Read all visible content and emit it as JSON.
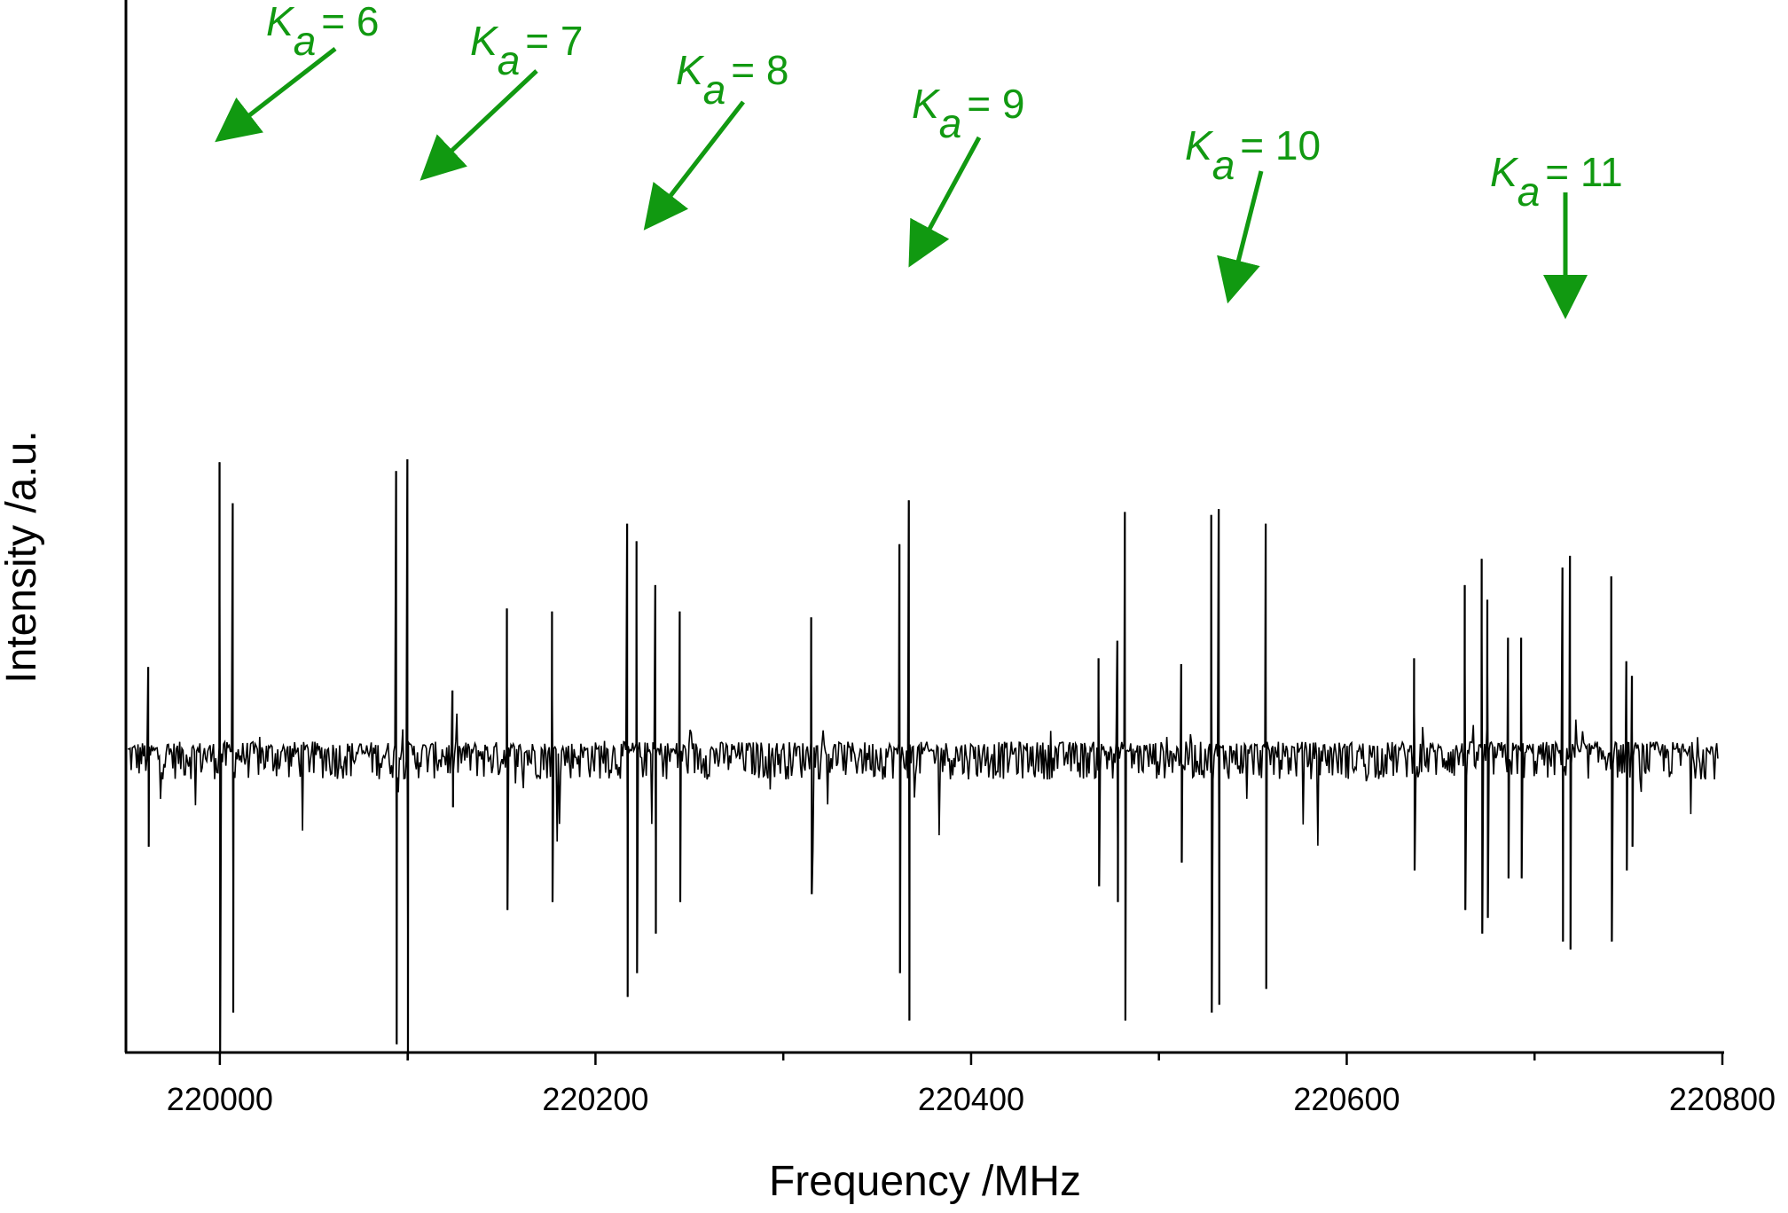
{
  "chart_data": {
    "type": "line",
    "title": "",
    "xlabel": "Frequency /MHz",
    "ylabel": "Intensity /a.u.",
    "xlim": [
      219950,
      220800
    ],
    "ylim": [
      -1.0,
      1.0
    ],
    "x_ticks_major": [
      220000,
      220200,
      220400,
      220600,
      220800
    ],
    "x_tick_labels": [
      "220000",
      "220200",
      "220400",
      "220600",
      "220800"
    ],
    "x_ticks_minor": [
      220100,
      220300,
      220500,
      220700
    ],
    "y_ticks_shown": false,
    "grid": false,
    "legend": "none",
    "line_color": "#000000",
    "annotation_color": "#119911",
    "noise_amplitude": 0.035,
    "peaks": [
      {
        "x": 219962,
        "pos": 0.29,
        "neg": -0.12
      },
      {
        "x": 220000,
        "pos": 0.99,
        "neg": -0.38
      },
      {
        "x": 220007,
        "pos": 0.85,
        "neg": -0.33
      },
      {
        "x": 220094,
        "pos": 0.96,
        "neg": -0.37
      },
      {
        "x": 220100,
        "pos": 1.0,
        "neg": -0.39
      },
      {
        "x": 220124,
        "pos": 0.21,
        "neg": -0.07
      },
      {
        "x": 220153,
        "pos": 0.49,
        "neg": -0.2
      },
      {
        "x": 220177,
        "pos": 0.48,
        "neg": -0.19
      },
      {
        "x": 220217,
        "pos": 0.78,
        "neg": -0.31
      },
      {
        "x": 220222,
        "pos": 0.72,
        "neg": -0.28
      },
      {
        "x": 220232,
        "pos": 0.57,
        "neg": -0.23
      },
      {
        "x": 220245,
        "pos": 0.48,
        "neg": -0.19
      },
      {
        "x": 220315,
        "pos": 0.46,
        "neg": -0.18
      },
      {
        "x": 220362,
        "pos": 0.71,
        "neg": -0.28
      },
      {
        "x": 220367,
        "pos": 0.86,
        "neg": -0.34
      },
      {
        "x": 220468,
        "pos": 0.32,
        "neg": -0.17
      },
      {
        "x": 220478,
        "pos": 0.38,
        "neg": -0.19
      },
      {
        "x": 220482,
        "pos": 0.82,
        "neg": -0.34
      },
      {
        "x": 220512,
        "pos": 0.3,
        "neg": -0.14
      },
      {
        "x": 220528,
        "pos": 0.81,
        "neg": -0.33
      },
      {
        "x": 220532,
        "pos": 0.83,
        "neg": -0.32
      },
      {
        "x": 220557,
        "pos": 0.78,
        "neg": -0.3
      },
      {
        "x": 220636,
        "pos": 0.32,
        "neg": -0.15
      },
      {
        "x": 220663,
        "pos": 0.57,
        "neg": -0.2
      },
      {
        "x": 220672,
        "pos": 0.66,
        "neg": -0.23
      },
      {
        "x": 220675,
        "pos": 0.52,
        "neg": -0.21
      },
      {
        "x": 220686,
        "pos": 0.39,
        "neg": -0.16
      },
      {
        "x": 220693,
        "pos": 0.39,
        "neg": -0.16
      },
      {
        "x": 220715,
        "pos": 0.63,
        "neg": -0.24
      },
      {
        "x": 220719,
        "pos": 0.67,
        "neg": -0.25
      },
      {
        "x": 220741,
        "pos": 0.6,
        "neg": -0.24
      },
      {
        "x": 220749,
        "pos": 0.31,
        "neg": -0.15
      },
      {
        "x": 220752,
        "pos": 0.26,
        "neg": -0.12
      }
    ],
    "annotations": [
      {
        "label": "K",
        "subscript": "a",
        "value": "= 6",
        "points_to_x": 220002
      },
      {
        "label": "K",
        "subscript": "a",
        "value": "= 7",
        "points_to_x": 220110
      },
      {
        "label": "K",
        "subscript": "a",
        "value": "= 8",
        "points_to_x": 220229
      },
      {
        "label": "K",
        "subscript": "a",
        "value": "= 9",
        "points_to_x": 220370
      },
      {
        "label": "K",
        "subscript": "a",
        "value": "= 10",
        "points_to_x": 220537
      },
      {
        "label": "K",
        "subscript": "a",
        "value": "= 11",
        "points_to_x": 220719
      }
    ]
  }
}
